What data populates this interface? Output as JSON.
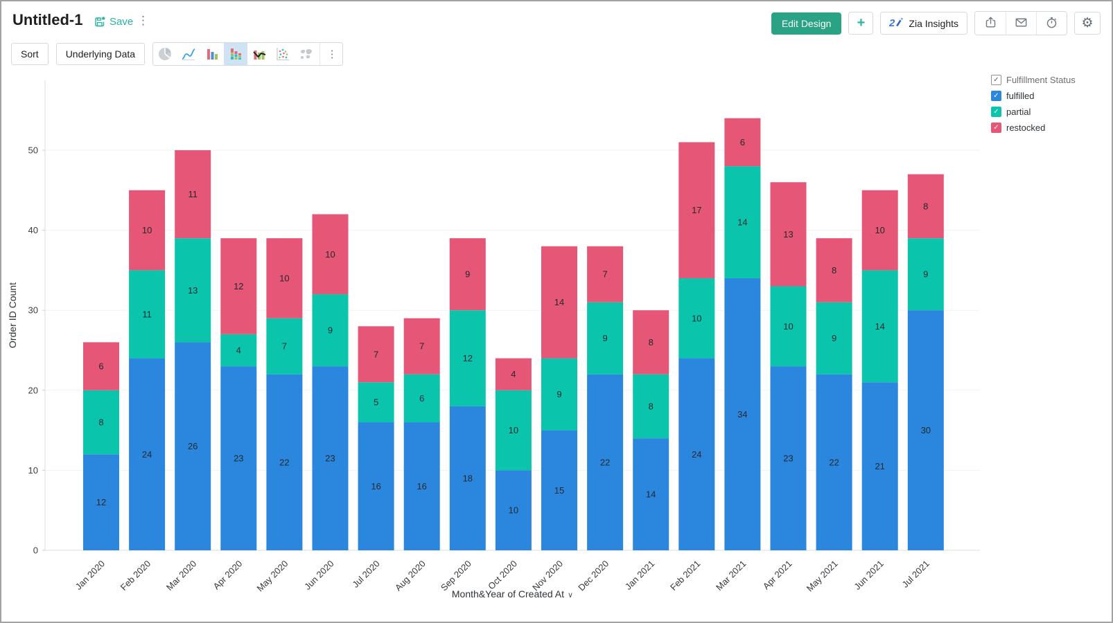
{
  "window": {
    "title": "Untitled-1",
    "save_label": "Save"
  },
  "header_actions": {
    "edit_design_label": "Edit Design",
    "plus_label": "+",
    "zia_label": "Zia Insights"
  },
  "toolbar": {
    "sort_label": "Sort",
    "underlying_data_label": "Underlying Data",
    "chart_types": [
      "pie-chart",
      "line-chart",
      "bar-chart",
      "stacked-bar-chart",
      "combo-chart",
      "scatter-chart",
      "map-chart"
    ],
    "selected_chart_type": "stacked-bar-chart"
  },
  "legend": {
    "title": "Fulfillment Status",
    "items": [
      {
        "label": "fulfilled",
        "color": "#2b87dd"
      },
      {
        "label": "partial",
        "color": "#0ac5ab"
      },
      {
        "label": "restocked",
        "color": "#e65677"
      }
    ]
  },
  "icons": {
    "kebab": "⋮",
    "gear": "⚙",
    "check": "✓",
    "chevron_down": "∨"
  },
  "chart_data": {
    "type": "bar",
    "stacked": true,
    "title": "",
    "xlabel": "Month&Year of Created At",
    "ylabel": "Order ID Count",
    "ylim": [
      0,
      55
    ],
    "yticks": [
      0,
      10,
      20,
      30,
      40,
      50
    ],
    "grid": true,
    "legend_position": "right",
    "categories": [
      "Jan 2020",
      "Feb 2020",
      "Mar 2020",
      "Apr 2020",
      "May 2020",
      "Jun 2020",
      "Jul 2020",
      "Aug 2020",
      "Sep 2020",
      "Oct 2020",
      "Nov 2020",
      "Dec 2020",
      "Jan 2021",
      "Feb 2021",
      "Mar 2021",
      "Apr 2021",
      "May 2021",
      "Jun 2021",
      "Jul 2021"
    ],
    "series": [
      {
        "name": "fulfilled",
        "color": "#2b87dd",
        "values": [
          12,
          24,
          26,
          23,
          22,
          23,
          16,
          16,
          18,
          10,
          15,
          22,
          14,
          24,
          34,
          23,
          22,
          21,
          30
        ]
      },
      {
        "name": "partial",
        "color": "#0ac5ab",
        "values": [
          8,
          11,
          13,
          4,
          7,
          9,
          5,
          6,
          12,
          10,
          9,
          9,
          8,
          10,
          14,
          10,
          9,
          14,
          9
        ]
      },
      {
        "name": "restocked",
        "color": "#e65677",
        "values": [
          6,
          10,
          11,
          12,
          10,
          10,
          7,
          7,
          9,
          4,
          14,
          7,
          8,
          17,
          6,
          13,
          8,
          10,
          8
        ]
      }
    ]
  }
}
